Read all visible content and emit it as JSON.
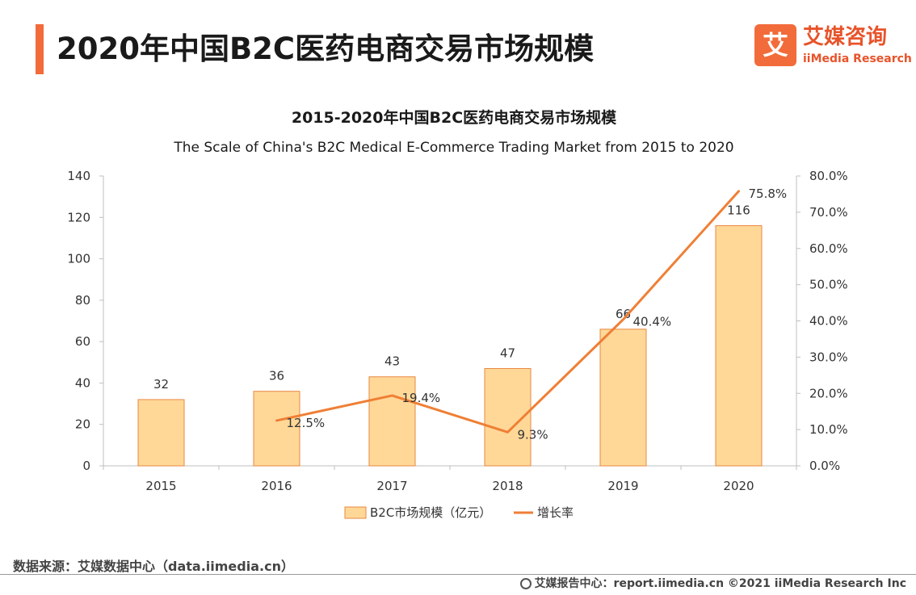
{
  "header": {
    "title": "2020年中国B2C医药电商交易市场规模"
  },
  "logo": {
    "mark": "艾",
    "name_cn": "艾媒咨询",
    "name_en": "iiMedia Research"
  },
  "colors": {
    "accent": "#f26b3a",
    "bar_fill": "#ffd898",
    "bar_stroke": "#e9873f",
    "line": "#ef7f35",
    "axis": "#bfbfbf"
  },
  "chart_data": {
    "type": "bar",
    "title": "2015-2020年中国B2C医药电商交易市场规模",
    "subtitle": "The Scale of China's B2C Medical E-Commerce Trading Market from 2015 to 2020",
    "categories": [
      "2015",
      "2016",
      "2017",
      "2018",
      "2019",
      "2020"
    ],
    "series": [
      {
        "name": "B2C市场规模（亿元）",
        "type": "bar",
        "axis": "left",
        "values": [
          32,
          36,
          43,
          47,
          66,
          116
        ],
        "labels": [
          "32",
          "36",
          "43",
          "47",
          "66",
          "116"
        ]
      },
      {
        "name": "增长率",
        "type": "line",
        "axis": "right",
        "values": [
          null,
          12.5,
          19.4,
          9.3,
          40.4,
          75.8
        ],
        "labels": [
          "",
          "12.5%",
          "19.4%",
          "9.3%",
          "40.4%",
          "75.8%"
        ]
      }
    ],
    "y_left": {
      "min": 0,
      "max": 140,
      "ticks": [
        "0",
        "20",
        "40",
        "60",
        "80",
        "100",
        "120",
        "140"
      ]
    },
    "y_right": {
      "min": 0,
      "max": 80,
      "ticks": [
        "0.0%",
        "10.0%",
        "20.0%",
        "30.0%",
        "40.0%",
        "50.0%",
        "60.0%",
        "70.0%",
        "80.0%"
      ]
    },
    "grid": false,
    "legend_position": "bottom"
  },
  "footer": {
    "source": "数据来源：艾媒数据中心（data.iimedia.cn）",
    "credit": "艾媒报告中心：report.iimedia.cn  ©2021  iiMedia Research  Inc"
  }
}
